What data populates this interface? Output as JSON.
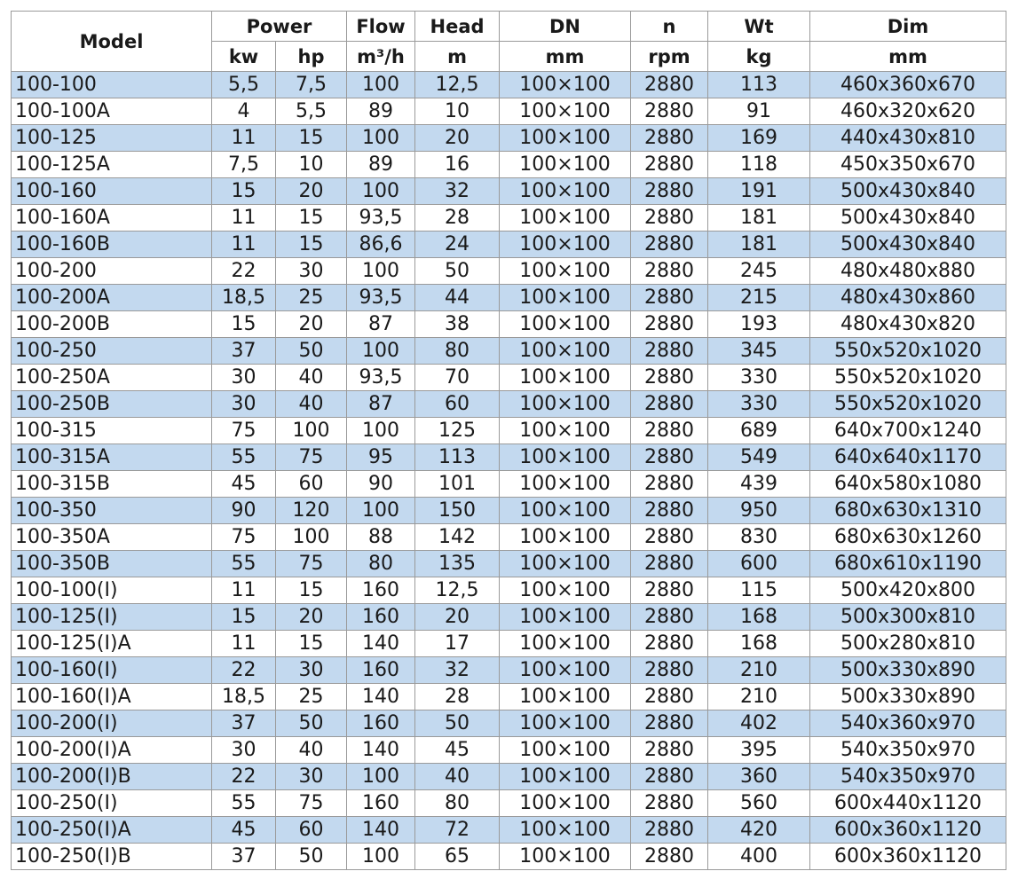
{
  "header": {
    "model": "Model",
    "groups": [
      "Power",
      "Flow",
      "Head",
      "DN",
      "n",
      "Wt",
      "Dim"
    ],
    "units": [
      "kw",
      "hp",
      "m³/h",
      "m",
      "mm",
      "rpm",
      "kg",
      "mm"
    ]
  },
  "table": {
    "rows": [
      [
        "100-100",
        "5,5",
        "7,5",
        "100",
        "12,5",
        "100×100",
        "2880",
        "113",
        "460x360x670"
      ],
      [
        "100-100A",
        "4",
        "5,5",
        "89",
        "10",
        "100×100",
        "2880",
        "91",
        "460x320x620"
      ],
      [
        "100-125",
        "11",
        "15",
        "100",
        "20",
        "100×100",
        "2880",
        "169",
        "440x430x810"
      ],
      [
        "100-125A",
        "7,5",
        "10",
        "89",
        "16",
        "100×100",
        "2880",
        "118",
        "450x350x670"
      ],
      [
        "100-160",
        "15",
        "20",
        "100",
        "32",
        "100×100",
        "2880",
        "191",
        "500x430x840"
      ],
      [
        "100-160A",
        "11",
        "15",
        "93,5",
        "28",
        "100×100",
        "2880",
        "181",
        "500x430x840"
      ],
      [
        "100-160B",
        "11",
        "15",
        "86,6",
        "24",
        "100×100",
        "2880",
        "181",
        "500x430x840"
      ],
      [
        "100-200",
        "22",
        "30",
        "100",
        "50",
        "100×100",
        "2880",
        "245",
        "480x480x880"
      ],
      [
        "100-200A",
        "18,5",
        "25",
        "93,5",
        "44",
        "100×100",
        "2880",
        "215",
        "480x430x860"
      ],
      [
        "100-200B",
        "15",
        "20",
        "87",
        "38",
        "100×100",
        "2880",
        "193",
        "480x430x820"
      ],
      [
        "100-250",
        "37",
        "50",
        "100",
        "80",
        "100×100",
        "2880",
        "345",
        "550x520x1020"
      ],
      [
        "100-250A",
        "30",
        "40",
        "93,5",
        "70",
        "100×100",
        "2880",
        "330",
        "550x520x1020"
      ],
      [
        "100-250B",
        "30",
        "40",
        "87",
        "60",
        "100×100",
        "2880",
        "330",
        "550x520x1020"
      ],
      [
        "100-315",
        "75",
        "100",
        "100",
        "125",
        "100×100",
        "2880",
        "689",
        "640x700x1240"
      ],
      [
        "100-315A",
        "55",
        "75",
        "95",
        "113",
        "100×100",
        "2880",
        "549",
        "640x640x1170"
      ],
      [
        "100-315B",
        "45",
        "60",
        "90",
        "101",
        "100×100",
        "2880",
        "439",
        "640x580x1080"
      ],
      [
        "100-350",
        "90",
        "120",
        "100",
        "150",
        "100×100",
        "2880",
        "950",
        "680x630x1310"
      ],
      [
        "100-350A",
        "75",
        "100",
        "88",
        "142",
        "100×100",
        "2880",
        "830",
        "680x630x1260"
      ],
      [
        "100-350B",
        "55",
        "75",
        "80",
        "135",
        "100×100",
        "2880",
        "600",
        "680x610x1190"
      ],
      [
        "100-100(I)",
        "11",
        "15",
        "160",
        "12,5",
        "100×100",
        "2880",
        "115",
        "500x420x800"
      ],
      [
        "100-125(I)",
        "15",
        "20",
        "160",
        "20",
        "100×100",
        "2880",
        "168",
        "500x300x810"
      ],
      [
        "100-125(I)A",
        "11",
        "15",
        "140",
        "17",
        "100×100",
        "2880",
        "168",
        "500x280x810"
      ],
      [
        "100-160(I)",
        "22",
        "30",
        "160",
        "32",
        "100×100",
        "2880",
        "210",
        "500x330x890"
      ],
      [
        "100-160(I)A",
        "18,5",
        "25",
        "140",
        "28",
        "100×100",
        "2880",
        "210",
        "500x330x890"
      ],
      [
        "100-200(I)",
        "37",
        "50",
        "160",
        "50",
        "100×100",
        "2880",
        "402",
        "540x360x970"
      ],
      [
        "100-200(I)A",
        "30",
        "40",
        "140",
        "45",
        "100×100",
        "2880",
        "395",
        "540x350x970"
      ],
      [
        "100-200(I)B",
        "22",
        "30",
        "100",
        "40",
        "100×100",
        "2880",
        "360",
        "540x350x970"
      ],
      [
        "100-250(I)",
        "55",
        "75",
        "160",
        "80",
        "100×100",
        "2880",
        "560",
        "600x440x1120"
      ],
      [
        "100-250(I)A",
        "45",
        "60",
        "140",
        "72",
        "100×100",
        "2880",
        "420",
        "600x360x1120"
      ],
      [
        "100-250(I)B",
        "37",
        "50",
        "100",
        "65",
        "100×100",
        "2880",
        "400",
        "600x360x1120"
      ]
    ]
  }
}
